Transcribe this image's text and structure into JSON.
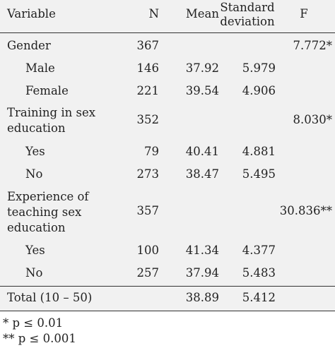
{
  "table": {
    "headers": {
      "variable": "Variable",
      "n": "N",
      "mean": "Mean",
      "sd_line1": "Standard",
      "sd_line2": "deviation",
      "f": "F"
    },
    "rows": [
      {
        "variable": "Gender",
        "n": "367",
        "mean": "",
        "sd": "",
        "f": "7.772*"
      },
      {
        "variable": "Male",
        "n": "146",
        "mean": "37.92",
        "sd": "5.979",
        "f": ""
      },
      {
        "variable": "Female",
        "n": "221",
        "mean": "39.54",
        "sd": "4.906",
        "f": ""
      },
      {
        "variable_line1": "Training in sex",
        "variable_line2": "education",
        "n": "352",
        "mean": "",
        "sd": "",
        "f": "8.030*"
      },
      {
        "variable": "Yes",
        "n": "79",
        "mean": "40.41",
        "sd": "4.881",
        "f": ""
      },
      {
        "variable": "No",
        "n": "273",
        "mean": "38.47",
        "sd": "5.495",
        "f": ""
      },
      {
        "variable_line1": "Experience of",
        "variable_line2": "teaching sex",
        "variable_line3": "education",
        "n": "357",
        "mean": "",
        "sd": "",
        "f": "30.836**"
      },
      {
        "variable": "Yes",
        "n": "100",
        "mean": "41.34",
        "sd": "4.377",
        "f": ""
      },
      {
        "variable": "No",
        "n": "257",
        "mean": "37.94",
        "sd": "5.483",
        "f": ""
      },
      {
        "variable": "Total (10 – 50)",
        "n": "",
        "mean": "38.89",
        "sd": "5.412",
        "f": ""
      }
    ]
  },
  "footnotes": [
    "* p ≤ 0.01",
    "** p ≤ 0.001"
  ]
}
